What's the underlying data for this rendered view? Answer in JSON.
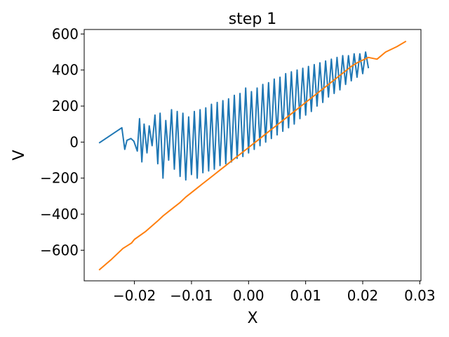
{
  "chart_data": {
    "type": "line",
    "title": "step 1",
    "xlabel": "X",
    "ylabel": "V",
    "xlim": [
      -0.0288,
      0.0302
    ],
    "ylim": [
      -770,
      625
    ],
    "x_ticks": [
      -0.02,
      -0.01,
      0.0,
      0.01,
      0.02,
      0.03
    ],
    "x_tick_labels": [
      "−0.02",
      "−0.01",
      "0.00",
      "0.01",
      "0.02",
      "0.03"
    ],
    "y_ticks": [
      -600,
      -400,
      -200,
      0,
      200,
      400,
      600
    ],
    "y_tick_labels": [
      "−600",
      "−400",
      "−200",
      "0",
      "200",
      "400",
      "600"
    ],
    "grid": false,
    "series": [
      {
        "color": "#1f77b4",
        "x": [
          -0.0262,
          -0.0222,
          -0.0217,
          -0.0213,
          -0.0206,
          -0.0201,
          -0.0195,
          -0.0191,
          -0.0187,
          -0.0183,
          -0.0178,
          -0.0174,
          -0.0169,
          -0.0164,
          -0.0159,
          -0.0155,
          -0.015,
          -0.0145,
          -0.014,
          -0.0135,
          -0.013,
          -0.0125,
          -0.012,
          -0.0115,
          -0.011,
          -0.0105,
          -0.01,
          -0.0095,
          -0.009,
          -0.0085,
          -0.008,
          -0.0075,
          -0.007,
          -0.0065,
          -0.006,
          -0.0055,
          -0.005,
          -0.0045,
          -0.004,
          -0.0035,
          -0.003,
          -0.0025,
          -0.002,
          -0.0015,
          -0.001,
          -0.0005,
          0.0,
          0.0005,
          0.001,
          0.0015,
          0.002,
          0.0025,
          0.003,
          0.0035,
          0.004,
          0.0045,
          0.005,
          0.0055,
          0.006,
          0.0065,
          0.007,
          0.0075,
          0.008,
          0.0085,
          0.009,
          0.0095,
          0.01,
          0.0105,
          0.011,
          0.0115,
          0.012,
          0.0125,
          0.013,
          0.0135,
          0.014,
          0.0145,
          0.015,
          0.0155,
          0.016,
          0.0165,
          0.017,
          0.0175,
          0.018,
          0.0185,
          0.019,
          0.0195,
          0.02,
          0.0205,
          0.021
        ],
        "y": [
          -5,
          80,
          -40,
          10,
          20,
          5,
          -50,
          130,
          -110,
          100,
          -60,
          90,
          -20,
          150,
          -120,
          160,
          -200,
          120,
          -100,
          180,
          -150,
          170,
          -190,
          160,
          -210,
          140,
          -180,
          170,
          -200,
          180,
          -170,
          190,
          -160,
          210,
          -150,
          220,
          -130,
          230,
          -120,
          240,
          -110,
          260,
          -90,
          270,
          -80,
          300,
          -60,
          280,
          -40,
          300,
          -20,
          320,
          0,
          330,
          20,
          350,
          40,
          360,
          60,
          380,
          80,
          390,
          100,
          400,
          130,
          410,
          150,
          420,
          170,
          430,
          200,
          440,
          220,
          450,
          250,
          460,
          270,
          470,
          290,
          480,
          320,
          480,
          340,
          490,
          360,
          490,
          380,
          500,
          410
        ]
      },
      {
        "color": "#ff7f0e",
        "x": [
          -0.0262,
          -0.024,
          -0.022,
          -0.021,
          -0.0205,
          -0.02,
          -0.018,
          -0.016,
          -0.015,
          -0.014,
          -0.013,
          -0.012,
          -0.011,
          -0.01,
          -0.009,
          -0.008,
          -0.007,
          -0.006,
          -0.005,
          -0.004,
          -0.003,
          -0.002,
          -0.001,
          0.0,
          0.001,
          0.002,
          0.003,
          0.004,
          0.005,
          0.006,
          0.007,
          0.008,
          0.009,
          0.01,
          0.011,
          0.012,
          0.013,
          0.014,
          0.015,
          0.016,
          0.017,
          0.018,
          0.019,
          0.02,
          0.021,
          0.0225,
          0.024,
          0.026,
          0.0276
        ],
        "y": [
          -710,
          -650,
          -590,
          -570,
          -560,
          -540,
          -495,
          -440,
          -410,
          -385,
          -360,
          -335,
          -305,
          -280,
          -255,
          -230,
          -205,
          -180,
          -155,
          -130,
          -105,
          -80,
          -55,
          -30,
          -5,
          20,
          45,
          70,
          95,
          120,
          145,
          170,
          195,
          220,
          245,
          270,
          295,
          320,
          345,
          370,
          395,
          420,
          440,
          455,
          470,
          460,
          500,
          530,
          560
        ]
      }
    ]
  }
}
